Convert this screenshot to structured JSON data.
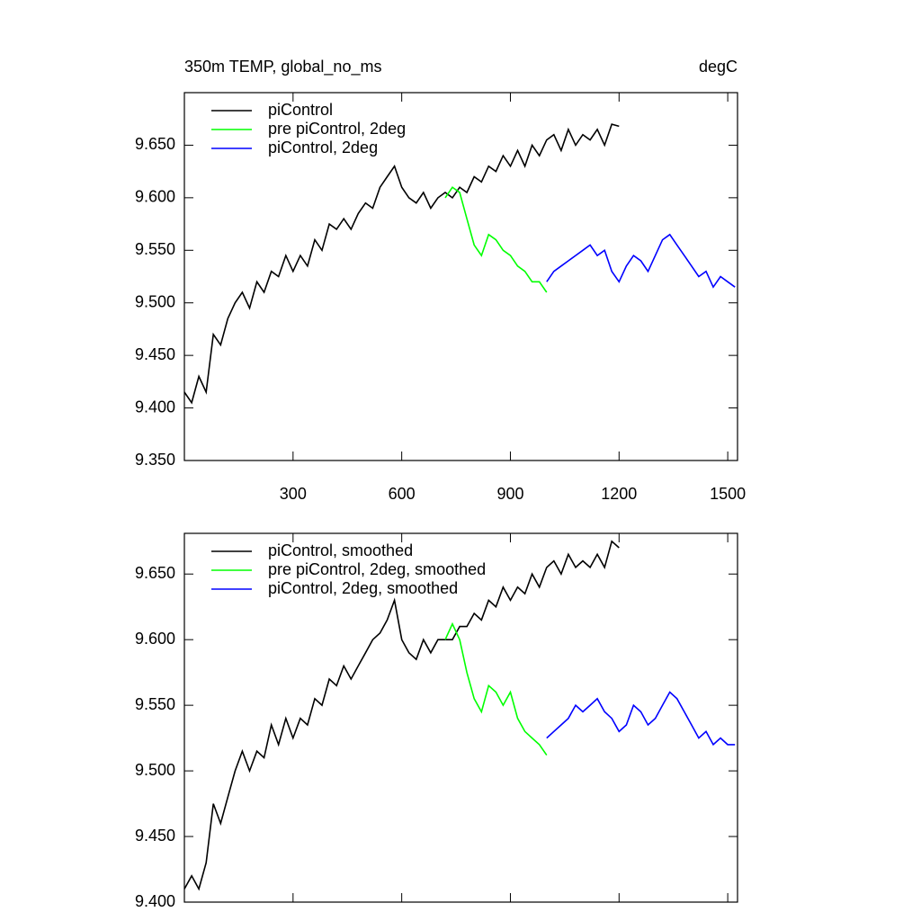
{
  "chart_data": [
    {
      "type": "line",
      "title": "350m TEMP, global_no_ms",
      "units_label": "degC",
      "xlim": [
        0,
        1527
      ],
      "xticks": [
        300,
        600,
        900,
        1200,
        1500
      ],
      "show_xtick_labels": true,
      "ylim": [
        9.35,
        9.7
      ],
      "yticks": [
        {
          "value": 9.35,
          "label": "9.350"
        },
        {
          "value": 9.4,
          "label": "9.400"
        },
        {
          "value": 9.45,
          "label": "9.450"
        },
        {
          "value": 9.5,
          "label": "9.500"
        },
        {
          "value": 9.55,
          "label": "9.550"
        },
        {
          "value": 9.6,
          "label": "9.600"
        },
        {
          "value": 9.65,
          "label": "9.650"
        }
      ],
      "legend": "upper left",
      "series": [
        {
          "name": "piControl",
          "color": "#000000",
          "x": [
            0,
            20,
            40,
            60,
            80,
            100,
            120,
            140,
            160,
            180,
            200,
            220,
            240,
            260,
            280,
            300,
            320,
            340,
            360,
            380,
            400,
            420,
            440,
            460,
            480,
            500,
            520,
            540,
            560,
            580,
            600,
            620,
            640,
            660,
            680,
            700,
            720,
            740,
            760,
            780,
            800,
            820,
            840,
            860,
            880,
            900,
            920,
            940,
            960,
            980,
            1000,
            1020,
            1040,
            1060,
            1080,
            1100,
            1120,
            1140,
            1160,
            1180,
            1200
          ],
          "values": [
            9.415,
            9.405,
            9.43,
            9.415,
            9.47,
            9.46,
            9.485,
            9.5,
            9.51,
            9.495,
            9.52,
            9.51,
            9.53,
            9.525,
            9.545,
            9.53,
            9.545,
            9.535,
            9.56,
            9.55,
            9.575,
            9.57,
            9.58,
            9.57,
            9.585,
            9.595,
            9.59,
            9.61,
            9.62,
            9.63,
            9.61,
            9.6,
            9.595,
            9.605,
            9.59,
            9.6,
            9.605,
            9.6,
            9.61,
            9.605,
            9.62,
            9.615,
            9.63,
            9.625,
            9.64,
            9.63,
            9.645,
            9.63,
            9.65,
            9.64,
            9.655,
            9.66,
            9.645,
            9.665,
            9.65,
            9.66,
            9.655,
            9.665,
            9.65,
            9.67,
            9.668
          ]
        },
        {
          "name": "pre piControl, 2deg",
          "color": "#00ff00",
          "x": [
            720,
            740,
            760,
            780,
            800,
            820,
            840,
            860,
            880,
            900,
            920,
            940,
            960,
            980,
            1000
          ],
          "values": [
            9.6,
            9.61,
            9.605,
            9.58,
            9.555,
            9.545,
            9.565,
            9.56,
            9.55,
            9.545,
            9.535,
            9.53,
            9.52,
            9.52,
            9.51
          ]
        },
        {
          "name": "piControl, 2deg",
          "color": "#0000ff",
          "x": [
            1000,
            1020,
            1040,
            1060,
            1080,
            1100,
            1120,
            1140,
            1160,
            1180,
            1200,
            1220,
            1240,
            1260,
            1280,
            1300,
            1320,
            1340,
            1360,
            1380,
            1400,
            1420,
            1440,
            1460,
            1480,
            1500,
            1520
          ],
          "values": [
            9.52,
            9.53,
            9.535,
            9.54,
            9.545,
            9.55,
            9.555,
            9.545,
            9.55,
            9.53,
            9.52,
            9.535,
            9.545,
            9.54,
            9.53,
            9.545,
            9.56,
            9.565,
            9.555,
            9.545,
            9.535,
            9.525,
            9.53,
            9.515,
            9.525,
            9.52,
            9.515
          ]
        }
      ]
    },
    {
      "type": "line",
      "xlim": [
        0,
        1527
      ],
      "xticks": [
        300,
        600,
        900,
        1200,
        1500
      ],
      "show_xtick_labels": false,
      "ylim": [
        9.4,
        9.681
      ],
      "yticks": [
        {
          "value": 9.4,
          "label": "9.400"
        },
        {
          "value": 9.45,
          "label": "9.450"
        },
        {
          "value": 9.5,
          "label": "9.500"
        },
        {
          "value": 9.55,
          "label": "9.550"
        },
        {
          "value": 9.6,
          "label": "9.600"
        },
        {
          "value": 9.65,
          "label": "9.650"
        }
      ],
      "legend": "upper left",
      "series": [
        {
          "name": "piControl, smoothed",
          "color": "#000000",
          "x": [
            0,
            20,
            40,
            60,
            80,
            100,
            120,
            140,
            160,
            180,
            200,
            220,
            240,
            260,
            280,
            300,
            320,
            340,
            360,
            380,
            400,
            420,
            440,
            460,
            480,
            500,
            520,
            540,
            560,
            580,
            600,
            620,
            640,
            660,
            680,
            700,
            720,
            740,
            760,
            780,
            800,
            820,
            840,
            860,
            880,
            900,
            920,
            940,
            960,
            980,
            1000,
            1020,
            1040,
            1060,
            1080,
            1100,
            1120,
            1140,
            1160,
            1180,
            1200
          ],
          "values": [
            9.41,
            9.42,
            9.41,
            9.43,
            9.475,
            9.46,
            9.48,
            9.5,
            9.515,
            9.5,
            9.515,
            9.51,
            9.535,
            9.52,
            9.54,
            9.525,
            9.54,
            9.535,
            9.555,
            9.55,
            9.57,
            9.565,
            9.58,
            9.57,
            9.58,
            9.59,
            9.6,
            9.605,
            9.615,
            9.63,
            9.6,
            9.59,
            9.585,
            9.6,
            9.59,
            9.6,
            9.6,
            9.6,
            9.61,
            9.61,
            9.62,
            9.615,
            9.63,
            9.625,
            9.64,
            9.63,
            9.64,
            9.635,
            9.65,
            9.64,
            9.655,
            9.66,
            9.65,
            9.665,
            9.655,
            9.66,
            9.655,
            9.665,
            9.655,
            9.675,
            9.67
          ]
        },
        {
          "name": "pre piControl, 2deg, smoothed",
          "color": "#00ff00",
          "x": [
            720,
            740,
            760,
            780,
            800,
            820,
            840,
            860,
            880,
            900,
            920,
            940,
            960,
            980,
            1000
          ],
          "values": [
            9.6,
            9.612,
            9.6,
            9.575,
            9.555,
            9.545,
            9.565,
            9.56,
            9.55,
            9.56,
            9.54,
            9.53,
            9.525,
            9.52,
            9.512
          ]
        },
        {
          "name": "piControl, 2deg, smoothed",
          "color": "#0000ff",
          "x": [
            1000,
            1020,
            1040,
            1060,
            1080,
            1100,
            1120,
            1140,
            1160,
            1180,
            1200,
            1220,
            1240,
            1260,
            1280,
            1300,
            1320,
            1340,
            1360,
            1380,
            1400,
            1420,
            1440,
            1460,
            1480,
            1500,
            1520
          ],
          "values": [
            9.525,
            9.53,
            9.535,
            9.54,
            9.55,
            9.545,
            9.55,
            9.555,
            9.545,
            9.54,
            9.53,
            9.535,
            9.55,
            9.545,
            9.535,
            9.54,
            9.55,
            9.56,
            9.555,
            9.545,
            9.535,
            9.525,
            9.53,
            9.52,
            9.525,
            9.52,
            9.52
          ]
        }
      ]
    }
  ]
}
